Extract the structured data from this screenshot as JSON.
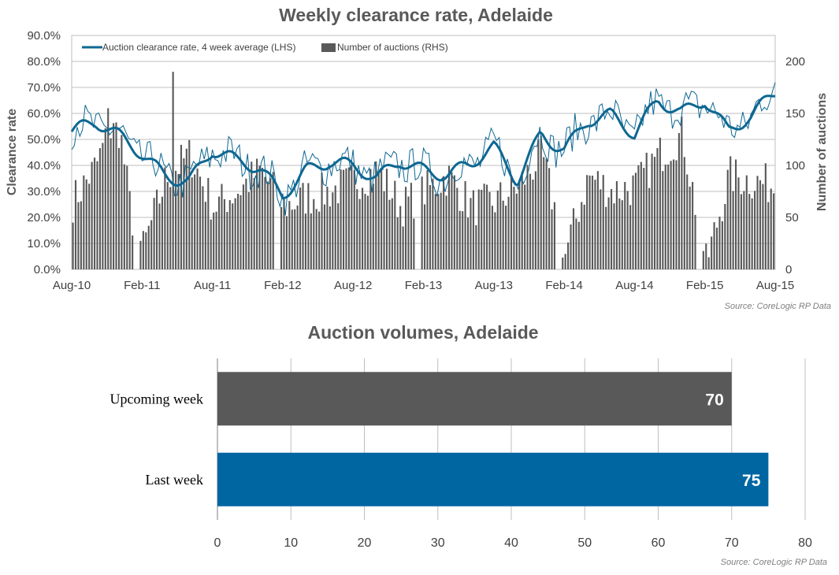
{
  "chart_data": [
    {
      "type": "line+bar",
      "title": "Weekly clearance rate, Adelaide",
      "ylabel_left": "Clearance rate",
      "ylabel_right": "Number of auctions",
      "ylim_left": [
        0,
        90
      ],
      "ylim_right": [
        0,
        225
      ],
      "yticks_left": [
        "0.0%",
        "10.0%",
        "20.0%",
        "30.0%",
        "40.0%",
        "50.0%",
        "60.0%",
        "70.0%",
        "80.0%",
        "90.0%"
      ],
      "yticks_left_values": [
        0,
        10,
        20,
        30,
        40,
        50,
        60,
        70,
        80,
        90
      ],
      "yticks_right": [
        "0",
        "50",
        "100",
        "150",
        "200"
      ],
      "yticks_right_values": [
        0,
        50,
        100,
        150,
        200
      ],
      "x_tick_labels": [
        "Aug-10",
        "Feb-11",
        "Aug-11",
        "Feb-12",
        "Aug-12",
        "Feb-13",
        "Aug-13",
        "Feb-14",
        "Aug-14",
        "Feb-15",
        "Aug-15"
      ],
      "grid": true,
      "legend_position": "top-left",
      "series": [
        {
          "name": "Auction clearance rate, 4 week average (LHS)",
          "kind": "line",
          "color": "#0e6792",
          "key_months": [
            0,
            2,
            4,
            6,
            8,
            10,
            12,
            14,
            16,
            18,
            20,
            22,
            24,
            26,
            28,
            30,
            32,
            34,
            36,
            38,
            40,
            42,
            44,
            46,
            48,
            50,
            52,
            54,
            56,
            58,
            60
          ],
          "key_values": [
            53,
            55,
            50,
            45,
            38,
            35,
            45,
            40,
            38,
            30,
            40,
            42,
            38,
            33,
            42,
            40,
            38,
            40,
            45,
            33,
            53,
            48,
            58,
            58,
            50,
            65,
            62,
            67,
            53,
            57,
            67
          ]
        },
        {
          "name": "Number of auctions (RHS)",
          "kind": "bar",
          "color": "#595959",
          "key_months": [
            0,
            2,
            3,
            4,
            5,
            6,
            8,
            10,
            12,
            14,
            16,
            18,
            20,
            22,
            24,
            26,
            28,
            30,
            32,
            34,
            36,
            38,
            40,
            42,
            44,
            46,
            48,
            50,
            52,
            54,
            56,
            58,
            60
          ],
          "key_values": [
            65,
            100,
            130,
            135,
            50,
            20,
            90,
            110,
            60,
            75,
            95,
            60,
            70,
            75,
            85,
            95,
            60,
            75,
            90,
            60,
            65,
            80,
            110,
            15,
            90,
            75,
            80,
            110,
            130,
            5,
            90,
            85,
            80
          ],
          "gaps_months": [
            [
              5.3,
              5.7
            ],
            [
              17.2,
              17.7
            ],
            [
              29.2,
              29.7
            ],
            [
              41.2,
              41.6
            ],
            [
              53.2,
              53.6
            ]
          ],
          "spikes": [
            {
              "month": 8.5,
              "value": 190
            },
            {
              "month": 3.0,
              "value": 155
            }
          ]
        }
      ],
      "source": "Source: CoreLogic RP Data"
    },
    {
      "type": "bar",
      "orientation": "horizontal",
      "title": "Auction volumes, Adelaide",
      "categories": [
        "Upcoming week",
        "Last week"
      ],
      "values": [
        70,
        75
      ],
      "value_labels": [
        "70",
        "75"
      ],
      "colors": [
        "#595959",
        "#0066a1"
      ],
      "xlim": [
        0,
        80
      ],
      "x_tick_labels": [
        "0",
        "10",
        "20",
        "30",
        "40",
        "50",
        "60",
        "70",
        "80"
      ],
      "x_tick_values": [
        0,
        10,
        20,
        30,
        40,
        50,
        60,
        70,
        80
      ],
      "grid": true,
      "source": "Source: CoreLogic RP Data"
    }
  ]
}
